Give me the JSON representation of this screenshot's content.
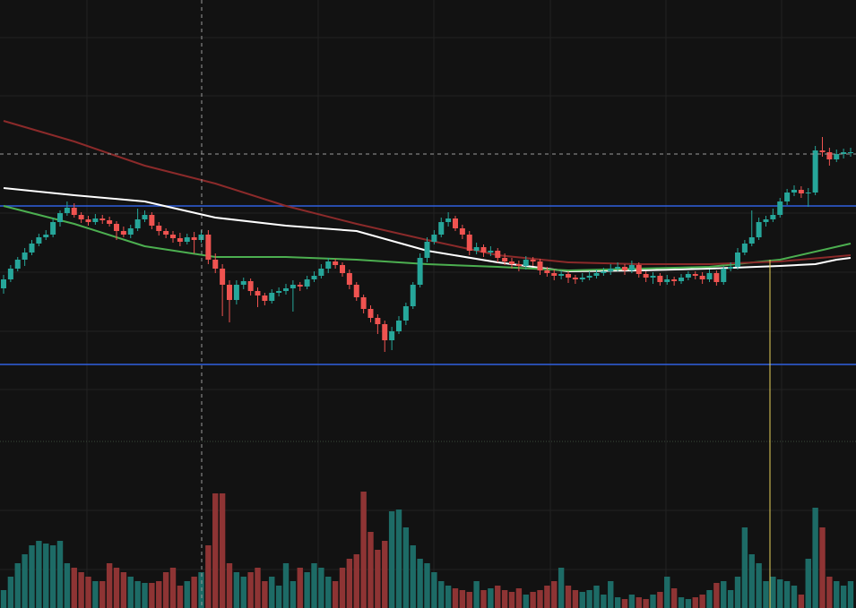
{
  "chart_data": {
    "type": "candlestick",
    "ylim": [
      0,
      493
    ],
    "up_color": "#26a69a",
    "down_color": "#ef5350",
    "open": [
      171,
      181,
      193,
      203,
      211,
      221,
      228,
      231,
      245,
      255,
      261,
      253,
      248,
      245,
      249,
      247,
      243,
      235,
      231,
      238,
      248,
      253,
      241,
      235,
      231,
      227,
      223,
      228,
      225,
      231,
      203,
      193,
      175,
      158,
      175,
      179,
      168,
      163,
      157,
      166,
      168,
      171,
      175,
      173,
      181,
      185,
      193,
      201,
      197,
      188,
      175,
      161,
      148,
      138,
      131,
      113,
      123,
      135,
      151,
      175,
      205,
      223,
      231,
      245,
      249,
      238,
      231,
      213,
      217,
      211,
      213,
      205,
      201,
      198,
      196,
      203,
      201,
      191,
      188,
      185,
      187,
      183,
      181,
      183,
      185,
      188,
      190,
      193,
      195,
      191,
      197,
      187,
      183,
      185,
      178,
      181,
      179,
      183,
      187,
      185,
      181,
      188,
      178,
      193,
      195,
      211,
      221,
      228,
      245,
      248,
      253,
      268,
      278,
      281,
      277,
      278,
      325,
      323,
      315,
      321,
      323
    ],
    "high": [
      186,
      197,
      206,
      216,
      225,
      232,
      236,
      250,
      258,
      268,
      266,
      256,
      252,
      254,
      253,
      251,
      246,
      240,
      242,
      260,
      258,
      256,
      245,
      238,
      235,
      233,
      232,
      234,
      236,
      236,
      210,
      198,
      180,
      180,
      183,
      182,
      172,
      166,
      170,
      172,
      176,
      180,
      178,
      185,
      190,
      198,
      205,
      204,
      200,
      192,
      178,
      164,
      152,
      142,
      135,
      128,
      140,
      155,
      178,
      210,
      228,
      236,
      250,
      256,
      252,
      242,
      235,
      222,
      220,
      218,
      216,
      210,
      205,
      202,
      207,
      206,
      204,
      195,
      192,
      191,
      190,
      186,
      188,
      190,
      192,
      194,
      198,
      200,
      198,
      202,
      200,
      190,
      189,
      188,
      186,
      184,
      187,
      190,
      190,
      189,
      192,
      191,
      196,
      200,
      216,
      225,
      258,
      250,
      252,
      260,
      272,
      282,
      286,
      285,
      283,
      330,
      340,
      328,
      326,
      327,
      328
    ],
    "low": [
      165,
      178,
      190,
      196,
      208,
      218,
      225,
      228,
      240,
      252,
      250,
      244,
      241,
      242,
      243,
      240,
      225,
      228,
      227,
      235,
      245,
      237,
      230,
      227,
      222,
      218,
      220,
      210,
      222,
      198,
      188,
      140,
      133,
      153,
      170,
      163,
      150,
      152,
      154,
      162,
      164,
      145,
      168,
      170,
      178,
      182,
      188,
      193,
      184,
      170,
      157,
      143,
      133,
      120,
      100,
      102,
      120,
      130,
      148,
      172,
      200,
      220,
      228,
      240,
      235,
      226,
      208,
      209,
      206,
      207,
      200,
      197,
      193,
      190,
      192,
      196,
      186,
      184,
      180,
      181,
      177,
      176,
      178,
      180,
      182,
      185,
      186,
      190,
      186,
      188,
      183,
      178,
      176,
      174,
      175,
      174,
      176,
      180,
      181,
      176,
      178,
      174,
      175,
      190,
      192,
      208,
      218,
      225,
      240,
      245,
      250,
      264,
      274,
      272,
      262,
      275,
      318,
      308,
      312,
      316,
      318
    ],
    "close": [
      181,
      193,
      203,
      211,
      221,
      228,
      231,
      245,
      255,
      261,
      253,
      248,
      245,
      249,
      247,
      243,
      235,
      231,
      238,
      248,
      253,
      241,
      235,
      231,
      227,
      223,
      228,
      225,
      231,
      203,
      193,
      175,
      158,
      175,
      179,
      168,
      163,
      157,
      166,
      168,
      171,
      175,
      173,
      181,
      185,
      193,
      201,
      197,
      188,
      175,
      161,
      148,
      138,
      131,
      113,
      123,
      135,
      151,
      175,
      205,
      223,
      231,
      245,
      249,
      238,
      231,
      213,
      217,
      211,
      213,
      205,
      201,
      198,
      196,
      203,
      201,
      191,
      188,
      185,
      187,
      183,
      181,
      183,
      185,
      188,
      190,
      193,
      195,
      191,
      197,
      187,
      183,
      185,
      178,
      181,
      179,
      183,
      187,
      185,
      181,
      188,
      178,
      193,
      195,
      211,
      221,
      228,
      245,
      248,
      253,
      268,
      278,
      281,
      277,
      278,
      325,
      323,
      315,
      321,
      323,
      323
    ],
    "levels": [
      {
        "value": 263,
        "color": "#2f5fe0"
      },
      {
        "value": 86,
        "color": "#2f5fe0"
      }
    ],
    "series": [
      {
        "color": "#ffffff",
        "x": [
          0,
          10,
          20,
          30,
          40,
          50,
          60,
          70,
          80,
          90,
          100,
          110,
          115,
          118,
          120
        ],
        "values": [
          283,
          275,
          268,
          250,
          241,
          235,
          213,
          200,
          190,
          191,
          193,
          196,
          198,
          203,
          205
        ]
      },
      {
        "color": "#4caf50",
        "x": [
          0,
          10,
          20,
          30,
          40,
          50,
          60,
          70,
          80,
          90,
          100,
          110,
          120
        ],
        "values": [
          263,
          243,
          218,
          206,
          206,
          203,
          198,
          195,
          191,
          193,
          195,
          203,
          221
        ]
      },
      {
        "color": "#8b2a2a",
        "x": [
          0,
          10,
          20,
          30,
          40,
          50,
          60,
          70,
          80,
          90,
          100,
          110,
          120
        ],
        "values": [
          358,
          335,
          308,
          288,
          263,
          243,
          225,
          208,
          200,
          198,
          198,
          201,
          208
        ]
      }
    ],
    "volume": {
      "ylim": [
        0,
        186
      ],
      "up_color": "#1d6b66",
      "down_color": "#8e3434",
      "values": [
        20,
        35,
        50,
        60,
        70,
        75,
        72,
        70,
        75,
        50,
        45,
        40,
        35,
        30,
        30,
        50,
        45,
        40,
        35,
        30,
        28,
        28,
        30,
        40,
        45,
        25,
        30,
        35,
        40,
        70,
        128,
        128,
        50,
        40,
        35,
        40,
        45,
        30,
        35,
        25,
        50,
        30,
        45,
        40,
        50,
        45,
        35,
        30,
        45,
        55,
        60,
        130,
        85,
        65,
        75,
        108,
        110,
        90,
        70,
        55,
        50,
        40,
        30,
        25,
        22,
        20,
        18,
        30,
        20,
        22,
        25,
        20,
        18,
        22,
        15,
        18,
        20,
        25,
        30,
        45,
        25,
        20,
        18,
        20,
        25,
        15,
        30,
        12,
        10,
        15,
        12,
        10,
        15,
        18,
        35,
        22,
        12,
        10,
        12,
        15,
        20,
        28,
        30,
        20,
        35,
        90,
        60,
        50,
        30,
        35,
        32,
        30,
        25,
        15,
        55,
        112,
        90,
        35,
        30,
        25,
        30
      ]
    }
  }
}
